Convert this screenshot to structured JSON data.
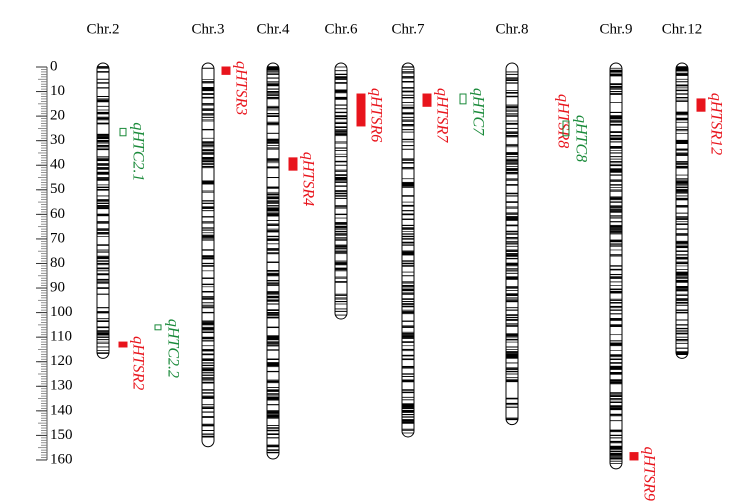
{
  "axis": {
    "ticks": [
      0,
      10,
      20,
      30,
      40,
      50,
      60,
      70,
      80,
      90,
      100,
      110,
      120,
      130,
      140,
      150,
      160
    ]
  },
  "chromosomes": [
    {
      "label": "Chr.2",
      "length": 117
    },
    {
      "label": "Chr.3",
      "length": 153
    },
    {
      "label": "Chr.4",
      "length": 158
    },
    {
      "label": "Chr.6",
      "length": 101
    },
    {
      "label": "Chr.7",
      "length": 149
    },
    {
      "label": "Chr.8",
      "length": 144
    },
    {
      "label": "Chr.9",
      "length": 162
    },
    {
      "label": "Chr.12",
      "length": 117
    }
  ],
  "qtls": [
    {
      "name": "qHTC2.1",
      "chromosome": "Chr.2",
      "start": 25,
      "end": 28,
      "color": "#1a8a3a"
    },
    {
      "name": "qHTSR2",
      "chromosome": "Chr.2",
      "start": 112,
      "end": 114,
      "color": "#e8141c"
    },
    {
      "name": "qHTC2.2",
      "chromosome": "Chr.2",
      "start": 105,
      "end": 107,
      "color": "#1a8a3a"
    },
    {
      "name": "qHTSR3",
      "chromosome": "Chr.3",
      "start": 0,
      "end": 3,
      "color": "#e8141c"
    },
    {
      "name": "qHTSR4",
      "chromosome": "Chr.4",
      "start": 37,
      "end": 42,
      "color": "#e8141c"
    },
    {
      "name": "qHTSR6",
      "chromosome": "Chr.6",
      "start": 11,
      "end": 24,
      "color": "#e8141c"
    },
    {
      "name": "qHTSR7",
      "chromosome": "Chr.7",
      "start": 11,
      "end": 16,
      "color": "#e8141c"
    },
    {
      "name": "qHTC7",
      "chromosome": "Chr.7",
      "start": 11,
      "end": 15,
      "color": "#1a8a3a"
    },
    {
      "name": "qHTSR8",
      "chromosome": "Chr.8",
      "color": "#e8141c"
    },
    {
      "name": "qHTC8",
      "chromosome": "Chr.8",
      "start": 22,
      "end": 28,
      "color": "#1a8a3a"
    },
    {
      "name": "qHTSR9",
      "chromosome": "Chr.9",
      "start": 157,
      "end": 160,
      "color": "#e8141c"
    },
    {
      "name": "qHTSR12",
      "chromosome": "Chr.12",
      "start": 13,
      "end": 18,
      "color": "#e8141c"
    }
  ]
}
